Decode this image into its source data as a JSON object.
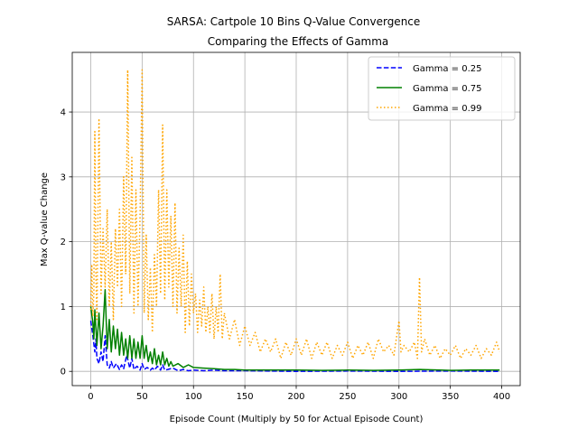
{
  "chart_data": {
    "type": "line",
    "title": "SARSA: Cartpole 10 Bins Q-Value Convergence",
    "subtitle": "Comparing the Effects of Gamma",
    "xlabel": "Episode Count (Multiply by 50 for Actual Episode Count)",
    "ylabel": "Max Q-value Change",
    "xlim": [
      -18,
      418
    ],
    "ylim": [
      -0.22,
      4.92
    ],
    "x_ticks": [
      0,
      50,
      100,
      150,
      200,
      250,
      300,
      350,
      400
    ],
    "y_ticks": [
      0,
      1,
      2,
      3,
      4
    ],
    "grid": true,
    "legend_position": "top-right",
    "series": [
      {
        "name": "Gamma = 0.25",
        "color": "#0000ff",
        "style": "dashed",
        "points": [
          [
            0,
            0.78
          ],
          [
            2,
            0.55
          ],
          [
            4,
            0.3
          ],
          [
            5,
            0.5
          ],
          [
            6,
            0.2
          ],
          [
            8,
            0.12
          ],
          [
            10,
            0.3
          ],
          [
            12,
            0.15
          ],
          [
            14,
            0.55
          ],
          [
            16,
            0.1
          ],
          [
            18,
            0.05
          ],
          [
            20,
            0.15
          ],
          [
            22,
            0.05
          ],
          [
            25,
            0.12
          ],
          [
            28,
            0.03
          ],
          [
            30,
            0.1
          ],
          [
            32,
            0.04
          ],
          [
            35,
            0.25
          ],
          [
            38,
            0.05
          ],
          [
            40,
            0.2
          ],
          [
            42,
            0.03
          ],
          [
            45,
            0.08
          ],
          [
            48,
            0.02
          ],
          [
            50,
            0.12
          ],
          [
            52,
            0.03
          ],
          [
            55,
            0.06
          ],
          [
            58,
            0.02
          ],
          [
            60,
            0.05
          ],
          [
            62,
            0.02
          ],
          [
            65,
            0.08
          ],
          [
            68,
            0.02
          ],
          [
            70,
            0.1
          ],
          [
            72,
            0.02
          ],
          [
            75,
            0.03
          ],
          [
            80,
            0.05
          ],
          [
            85,
            0.01
          ],
          [
            90,
            0.03
          ],
          [
            95,
            0.01
          ],
          [
            100,
            0.02
          ],
          [
            110,
            0.01
          ],
          [
            120,
            0.02
          ],
          [
            130,
            0.01
          ],
          [
            150,
            0.01
          ],
          [
            200,
            0.0
          ],
          [
            250,
            0.005
          ],
          [
            300,
            0.0
          ],
          [
            350,
            0.005
          ],
          [
            398,
            0.0
          ]
        ]
      },
      {
        "name": "Gamma = 0.75",
        "color": "#008000",
        "style": "solid",
        "points": [
          [
            0,
            1.0
          ],
          [
            2,
            0.75
          ],
          [
            3,
            0.5
          ],
          [
            4,
            0.95
          ],
          [
            6,
            0.4
          ],
          [
            8,
            0.9
          ],
          [
            10,
            0.35
          ],
          [
            12,
            0.7
          ],
          [
            14,
            1.26
          ],
          [
            16,
            0.35
          ],
          [
            18,
            0.8
          ],
          [
            20,
            0.3
          ],
          [
            22,
            0.7
          ],
          [
            24,
            0.35
          ],
          [
            26,
            0.65
          ],
          [
            28,
            0.25
          ],
          [
            30,
            0.6
          ],
          [
            32,
            0.25
          ],
          [
            34,
            0.5
          ],
          [
            36,
            0.2
          ],
          [
            38,
            0.55
          ],
          [
            40,
            0.2
          ],
          [
            42,
            0.5
          ],
          [
            44,
            0.2
          ],
          [
            46,
            0.45
          ],
          [
            48,
            0.2
          ],
          [
            50,
            0.55
          ],
          [
            52,
            0.2
          ],
          [
            54,
            0.4
          ],
          [
            56,
            0.15
          ],
          [
            58,
            0.3
          ],
          [
            60,
            0.12
          ],
          [
            62,
            0.35
          ],
          [
            64,
            0.1
          ],
          [
            66,
            0.25
          ],
          [
            68,
            0.1
          ],
          [
            70,
            0.3
          ],
          [
            72,
            0.1
          ],
          [
            74,
            0.2
          ],
          [
            76,
            0.08
          ],
          [
            78,
            0.15
          ],
          [
            80,
            0.08
          ],
          [
            85,
            0.12
          ],
          [
            90,
            0.06
          ],
          [
            95,
            0.1
          ],
          [
            100,
            0.06
          ],
          [
            110,
            0.05
          ],
          [
            120,
            0.04
          ],
          [
            130,
            0.03
          ],
          [
            140,
            0.03
          ],
          [
            150,
            0.02
          ],
          [
            175,
            0.02
          ],
          [
            200,
            0.02
          ],
          [
            225,
            0.015
          ],
          [
            250,
            0.02
          ],
          [
            275,
            0.015
          ],
          [
            300,
            0.02
          ],
          [
            320,
            0.03
          ],
          [
            340,
            0.02
          ],
          [
            350,
            0.015
          ],
          [
            370,
            0.02
          ],
          [
            398,
            0.02
          ]
        ]
      },
      {
        "name": "Gamma = 0.99",
        "color": "#ffa500",
        "style": "dotted",
        "points": [
          [
            0,
            0.95
          ],
          [
            1,
            1.65
          ],
          [
            2,
            0.85
          ],
          [
            3,
            1.2
          ],
          [
            4,
            3.7
          ],
          [
            5,
            1.5
          ],
          [
            6,
            0.8
          ],
          [
            8,
            3.9
          ],
          [
            10,
            1.2
          ],
          [
            12,
            2.2
          ],
          [
            14,
            1.3
          ],
          [
            16,
            2.5
          ],
          [
            18,
            1.0
          ],
          [
            20,
            2.0
          ],
          [
            22,
            0.8
          ],
          [
            24,
            2.2
          ],
          [
            26,
            1.3
          ],
          [
            28,
            2.5
          ],
          [
            30,
            1.0
          ],
          [
            32,
            3.0
          ],
          [
            34,
            1.5
          ],
          [
            36,
            4.65
          ],
          [
            38,
            1.2
          ],
          [
            40,
            3.3
          ],
          [
            42,
            0.9
          ],
          [
            44,
            2.8
          ],
          [
            46,
            1.0
          ],
          [
            48,
            2.4
          ],
          [
            50,
            4.65
          ],
          [
            52,
            0.9
          ],
          [
            54,
            2.1
          ],
          [
            56,
            0.8
          ],
          [
            58,
            1.6
          ],
          [
            60,
            0.6
          ],
          [
            62,
            1.8
          ],
          [
            64,
            1.0
          ],
          [
            66,
            2.8
          ],
          [
            68,
            1.2
          ],
          [
            70,
            3.8
          ],
          [
            72,
            1.1
          ],
          [
            74,
            2.8
          ],
          [
            76,
            1.3
          ],
          [
            78,
            2.4
          ],
          [
            80,
            1.0
          ],
          [
            82,
            2.6
          ],
          [
            84,
            0.9
          ],
          [
            86,
            1.9
          ],
          [
            88,
            1.0
          ],
          [
            90,
            2.1
          ],
          [
            92,
            0.6
          ],
          [
            94,
            1.7
          ],
          [
            96,
            0.7
          ],
          [
            98,
            1.5
          ],
          [
            100,
            0.9
          ],
          [
            102,
            1.2
          ],
          [
            104,
            0.6
          ],
          [
            106,
            1.1
          ],
          [
            108,
            0.7
          ],
          [
            110,
            1.3
          ],
          [
            112,
            0.6
          ],
          [
            114,
            1.0
          ],
          [
            116,
            0.6
          ],
          [
            118,
            1.2
          ],
          [
            120,
            0.5
          ],
          [
            122,
            1.0
          ],
          [
            124,
            0.6
          ],
          [
            126,
            1.5
          ],
          [
            128,
            0.5
          ],
          [
            130,
            0.9
          ],
          [
            135,
            0.5
          ],
          [
            140,
            0.8
          ],
          [
            145,
            0.4
          ],
          [
            150,
            0.7
          ],
          [
            155,
            0.4
          ],
          [
            160,
            0.6
          ],
          [
            165,
            0.3
          ],
          [
            170,
            0.5
          ],
          [
            175,
            0.3
          ],
          [
            180,
            0.5
          ],
          [
            185,
            0.2
          ],
          [
            190,
            0.45
          ],
          [
            195,
            0.25
          ],
          [
            200,
            0.5
          ],
          [
            205,
            0.25
          ],
          [
            210,
            0.5
          ],
          [
            215,
            0.2
          ],
          [
            220,
            0.45
          ],
          [
            225,
            0.25
          ],
          [
            230,
            0.45
          ],
          [
            235,
            0.2
          ],
          [
            240,
            0.4
          ],
          [
            245,
            0.25
          ],
          [
            250,
            0.45
          ],
          [
            255,
            0.2
          ],
          [
            260,
            0.4
          ],
          [
            265,
            0.25
          ],
          [
            270,
            0.45
          ],
          [
            275,
            0.2
          ],
          [
            280,
            0.5
          ],
          [
            285,
            0.3
          ],
          [
            290,
            0.4
          ],
          [
            295,
            0.25
          ],
          [
            300,
            0.78
          ],
          [
            302,
            0.3
          ],
          [
            305,
            0.4
          ],
          [
            310,
            0.3
          ],
          [
            315,
            0.45
          ],
          [
            318,
            0.2
          ],
          [
            320,
            1.45
          ],
          [
            322,
            0.3
          ],
          [
            325,
            0.5
          ],
          [
            330,
            0.25
          ],
          [
            335,
            0.4
          ],
          [
            340,
            0.2
          ],
          [
            345,
            0.35
          ],
          [
            350,
            0.25
          ],
          [
            355,
            0.4
          ],
          [
            360,
            0.2
          ],
          [
            365,
            0.35
          ],
          [
            370,
            0.25
          ],
          [
            375,
            0.4
          ],
          [
            380,
            0.2
          ],
          [
            385,
            0.35
          ],
          [
            390,
            0.25
          ],
          [
            395,
            0.45
          ],
          [
            398,
            0.3
          ]
        ]
      }
    ]
  }
}
